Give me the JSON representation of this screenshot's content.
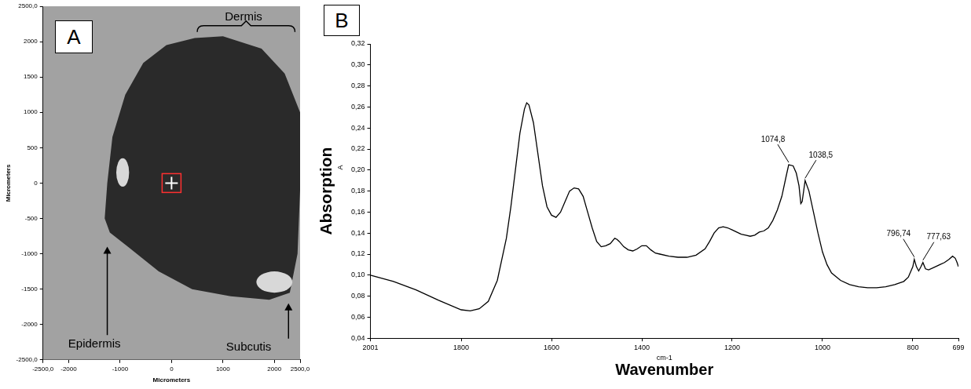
{
  "chart_data": [
    {
      "panel": "A",
      "type": "image",
      "xlabel": "Micrometers",
      "ylabel": "Micrometers",
      "xlim": [
        -2500,
        2500
      ],
      "xticks": [
        {
          "value": -2500,
          "label": "-2500,0"
        },
        -2000,
        -1000,
        0,
        1000,
        2000,
        {
          "value": 2500,
          "label": "2500,0"
        }
      ],
      "ylim": [
        -2500,
        2500
      ],
      "yticks": [
        {
          "value": -2500,
          "label": "-2500,0"
        },
        -2000,
        -1500,
        -1000,
        -500,
        0,
        500,
        1000,
        1500,
        2000,
        {
          "value": 2500,
          "label": "2500,0"
        }
      ],
      "grid": false,
      "annotations": [
        "Dermis",
        "Epidermis",
        "Subcutis"
      ]
    },
    {
      "panel": "B",
      "type": "line",
      "xlabel": "Wavenumber",
      "xunit": "cm-1",
      "ylabel": "Absorption",
      "yunit": "A",
      "color": "#000000",
      "grid": false,
      "xlim": [
        2001,
        699
      ],
      "xticks": [
        2001,
        1800,
        1600,
        1400,
        1200,
        1000,
        800,
        699
      ],
      "ylim": [
        0.04,
        0.32
      ],
      "yticks": [
        {
          "value": 0.04,
          "label": "0,04"
        },
        {
          "value": 0.06,
          "label": "0,06"
        },
        {
          "value": 0.08,
          "label": "0,08"
        },
        {
          "value": 0.1,
          "label": "0,10"
        },
        {
          "value": 0.12,
          "label": "0,12"
        },
        {
          "value": 0.14,
          "label": "0,14"
        },
        {
          "value": 0.16,
          "label": "0,16"
        },
        {
          "value": 0.18,
          "label": "0,18"
        },
        {
          "value": 0.2,
          "label": "0,20"
        },
        {
          "value": 0.22,
          "label": "0,22"
        },
        {
          "value": 0.24,
          "label": "0,24"
        },
        {
          "value": 0.26,
          "label": "0,26"
        },
        {
          "value": 0.28,
          "label": "0,28"
        },
        {
          "value": 0.3,
          "label": "0,30"
        },
        {
          "value": 0.32,
          "label": "0,32"
        }
      ],
      "x": [
        2001,
        1950,
        1900,
        1850,
        1800,
        1780,
        1760,
        1740,
        1720,
        1700,
        1690,
        1680,
        1670,
        1660,
        1655,
        1650,
        1640,
        1630,
        1620,
        1610,
        1600,
        1590,
        1580,
        1570,
        1560,
        1550,
        1540,
        1530,
        1520,
        1510,
        1500,
        1490,
        1480,
        1470,
        1460,
        1455,
        1450,
        1440,
        1430,
        1420,
        1410,
        1400,
        1390,
        1380,
        1370,
        1360,
        1340,
        1320,
        1300,
        1280,
        1260,
        1250,
        1240,
        1230,
        1220,
        1210,
        1200,
        1190,
        1180,
        1170,
        1160,
        1150,
        1140,
        1130,
        1120,
        1110,
        1100,
        1090,
        1080,
        1074.8,
        1065,
        1058,
        1052,
        1048,
        1045,
        1038.5,
        1030,
        1020,
        1010,
        1000,
        990,
        980,
        960,
        940,
        920,
        900,
        880,
        860,
        840,
        820,
        810,
        800,
        796.74,
        792,
        787,
        782,
        777.63,
        772,
        765,
        750,
        740,
        730,
        720,
        712,
        706,
        702,
        699
      ],
      "values": [
        0.1,
        0.094,
        0.086,
        0.076,
        0.067,
        0.066,
        0.068,
        0.075,
        0.095,
        0.135,
        0.165,
        0.2,
        0.235,
        0.258,
        0.264,
        0.262,
        0.245,
        0.215,
        0.185,
        0.165,
        0.157,
        0.155,
        0.16,
        0.17,
        0.18,
        0.183,
        0.182,
        0.175,
        0.16,
        0.145,
        0.132,
        0.127,
        0.128,
        0.13,
        0.135,
        0.134,
        0.132,
        0.127,
        0.124,
        0.123,
        0.125,
        0.128,
        0.128,
        0.124,
        0.121,
        0.12,
        0.118,
        0.117,
        0.117,
        0.119,
        0.125,
        0.132,
        0.14,
        0.145,
        0.146,
        0.145,
        0.143,
        0.141,
        0.139,
        0.138,
        0.137,
        0.138,
        0.141,
        0.142,
        0.145,
        0.152,
        0.162,
        0.175,
        0.195,
        0.205,
        0.204,
        0.197,
        0.185,
        0.168,
        0.17,
        0.19,
        0.18,
        0.16,
        0.14,
        0.122,
        0.11,
        0.102,
        0.095,
        0.091,
        0.089,
        0.088,
        0.088,
        0.089,
        0.091,
        0.094,
        0.098,
        0.108,
        0.115,
        0.108,
        0.104,
        0.108,
        0.112,
        0.106,
        0.105,
        0.108,
        0.11,
        0.112,
        0.115,
        0.118,
        0.116,
        0.112,
        0.108
      ],
      "annotations": [
        {
          "label": "1074,8",
          "x": 1074.8
        },
        {
          "label": "1038,5",
          "x": 1038.5
        },
        {
          "label": "796,74",
          "x": 796.74
        },
        {
          "label": "777,63",
          "x": 777.63
        }
      ]
    }
  ]
}
